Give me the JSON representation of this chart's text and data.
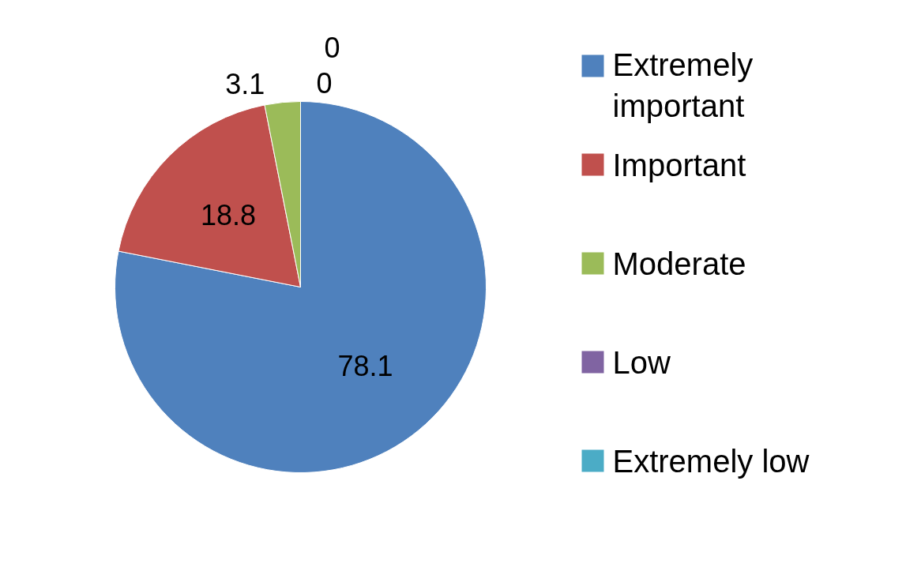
{
  "chart_data": {
    "type": "pie",
    "categories": [
      "Extremely important",
      "Important",
      "Moderate",
      "Low",
      "Extremely low"
    ],
    "values": [
      78.1,
      18.8,
      3.1,
      0,
      0
    ],
    "colors": [
      "#4f81bd",
      "#c0504d",
      "#9bbb59",
      "#8064a2",
      "#4bacc6"
    ],
    "value_labels": [
      "78.1",
      "18.8",
      "3.1",
      "0",
      "0"
    ],
    "legend": "right"
  }
}
